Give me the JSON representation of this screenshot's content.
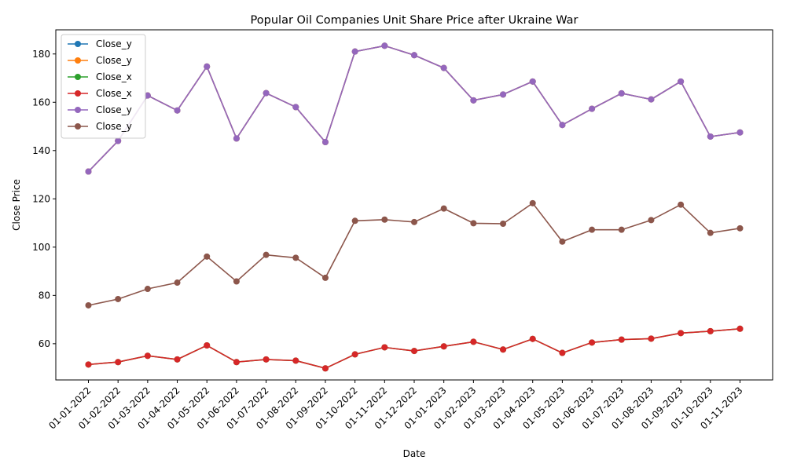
{
  "chart_data": {
    "type": "line",
    "title": "Popular Oil Companies Unit Share Price after Ukraine War",
    "xlabel": "Date",
    "ylabel": "Close Price",
    "ylim": [
      45,
      190
    ],
    "yticks": [
      60,
      80,
      100,
      120,
      140,
      160,
      180
    ],
    "grid": false,
    "legend_position": "top-left",
    "categories": [
      "01-01-2022",
      "01-02-2022",
      "01-03-2022",
      "01-04-2022",
      "01-05-2022",
      "01-06-2022",
      "01-07-2022",
      "01-08-2022",
      "01-09-2022",
      "01-10-2022",
      "01-11-2022",
      "01-12-2022",
      "01-01-2023",
      "01-02-2023",
      "01-03-2023",
      "01-04-2023",
      "01-05-2023",
      "01-06-2023",
      "01-07-2023",
      "01-08-2023",
      "01-09-2023",
      "01-10-2023",
      "01-11-2023"
    ],
    "series": [
      {
        "name": "Close_y",
        "color": "#1f77b4",
        "values": [
          131.3,
          144.0,
          162.8,
          156.6,
          174.8,
          145.0,
          163.8,
          158.0,
          143.5,
          181.0,
          183.4,
          179.5,
          174.2,
          160.8,
          163.2,
          168.6,
          150.6,
          157.3,
          163.7,
          161.2,
          168.6,
          145.8,
          147.5
        ]
      },
      {
        "name": "Close_y",
        "color": "#ff7f0e",
        "values": [
          131.3,
          144.0,
          162.8,
          156.6,
          174.8,
          145.0,
          163.8,
          158.0,
          143.5,
          181.0,
          183.4,
          179.5,
          174.2,
          160.8,
          163.2,
          168.6,
          150.6,
          157.3,
          163.7,
          161.2,
          168.6,
          145.8,
          147.5
        ]
      },
      {
        "name": "Close_x",
        "color": "#2ca02c",
        "values": [
          51.4,
          52.4,
          55.0,
          53.5,
          59.3,
          52.4,
          53.5,
          53.0,
          49.8,
          55.6,
          58.5,
          57.0,
          58.9,
          60.8,
          57.6,
          62.0,
          56.2,
          60.5,
          61.7,
          62.1,
          64.4,
          65.2,
          66.2
        ]
      },
      {
        "name": "Close_x",
        "color": "#d62728",
        "values": [
          51.4,
          52.4,
          55.0,
          53.5,
          59.3,
          52.4,
          53.5,
          53.0,
          49.8,
          55.6,
          58.5,
          57.0,
          58.9,
          60.8,
          57.6,
          62.0,
          56.2,
          60.5,
          61.7,
          62.1,
          64.4,
          65.2,
          66.2
        ]
      },
      {
        "name": "Close_y",
        "color": "#9467bd",
        "values": [
          131.3,
          144.0,
          162.8,
          156.6,
          174.8,
          145.0,
          163.8,
          158.0,
          143.5,
          181.0,
          183.4,
          179.5,
          174.2,
          160.8,
          163.2,
          168.6,
          150.6,
          157.3,
          163.7,
          161.2,
          168.6,
          145.8,
          147.5
        ]
      },
      {
        "name": "Close_y",
        "color": "#8c564b",
        "values": [
          75.9,
          78.5,
          82.7,
          85.3,
          96.1,
          85.8,
          96.8,
          95.6,
          87.3,
          110.9,
          111.4,
          110.4,
          116.0,
          109.9,
          109.7,
          118.2,
          102.3,
          107.2,
          107.2,
          111.2,
          117.6,
          105.9,
          107.8
        ]
      }
    ]
  }
}
